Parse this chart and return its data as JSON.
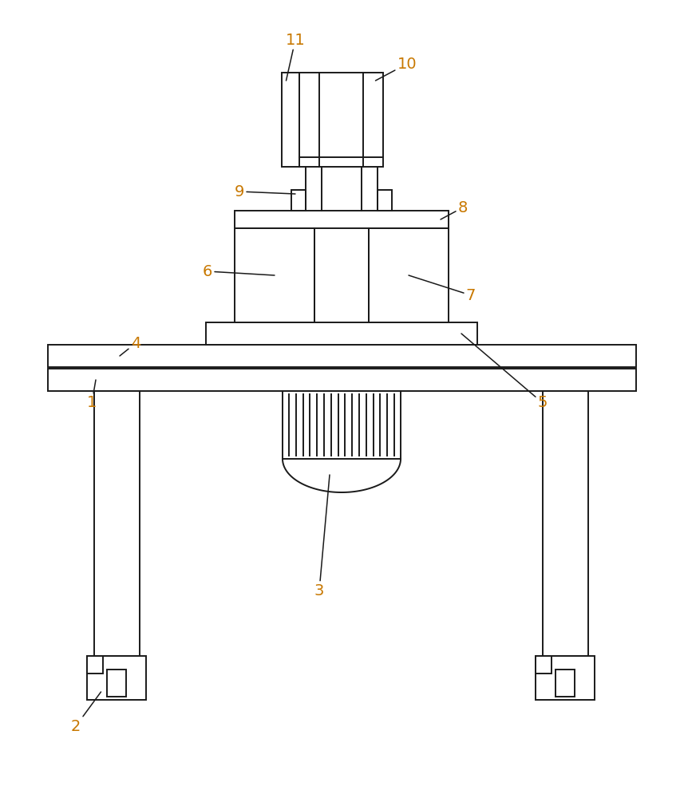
{
  "bg_color": "#ffffff",
  "line_color": "#1a1a1a",
  "label_color": "#c87800",
  "figsize": [
    8.57,
    10.0
  ],
  "dpi": 100
}
